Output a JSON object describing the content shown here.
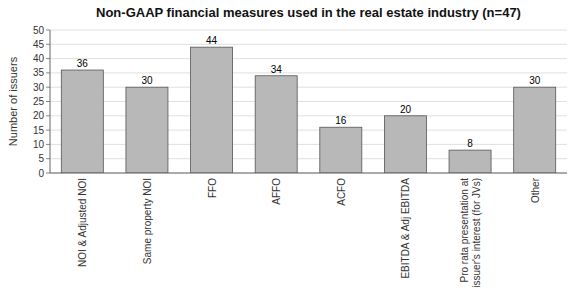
{
  "chart_data": {
    "type": "bar",
    "title": "Non-GAAP financial measures used in the real estate industry (n=47)",
    "categories": [
      "NOI & Adjusted NOI",
      "Same property NOI",
      "FFO",
      "AFFO",
      "ACFO",
      "EBITDA & Adj EBITDA",
      "Pro rata presentation at\nissuer's interest (for JVs)",
      "Other"
    ],
    "values": [
      36,
      30,
      44,
      34,
      16,
      20,
      8,
      30
    ],
    "color": "#b8b8b8",
    "ylabel": "Number of issuers",
    "ylim": [
      0,
      50
    ],
    "yticks": [
      0,
      5,
      10,
      15,
      20,
      25,
      30,
      35,
      40,
      45,
      50
    ],
    "grid": true,
    "data_labels": true
  }
}
